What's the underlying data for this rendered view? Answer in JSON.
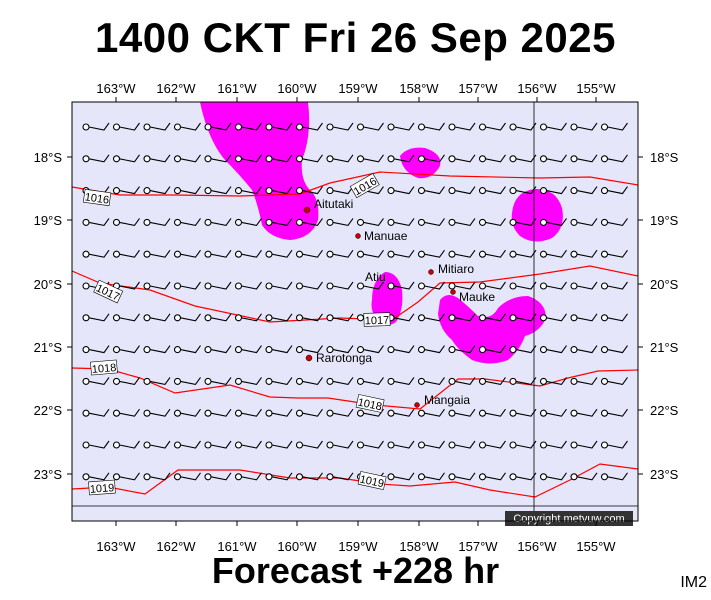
{
  "title": "1400 CKT Fri 26 Sep 2025",
  "footer": "Forecast +228 hr",
  "image_tag": "IM2",
  "copyright": "Copyright metvuw.com",
  "colors": {
    "background": "#e6e6fa",
    "rain": "#ff00ff",
    "isobar": "#ff0000",
    "island": "#cc0000",
    "wind": "#000000"
  },
  "longitude_labels": [
    "163°W",
    "162°W",
    "161°W",
    "160°W",
    "159°W",
    "158°W",
    "157°W",
    "156°W",
    "155°W"
  ],
  "latitude_labels": [
    "18°S",
    "19°S",
    "20°S",
    "21°S",
    "22°S",
    "23°S"
  ],
  "islands": [
    {
      "name": "Aitutaki"
    },
    {
      "name": "Manuae"
    },
    {
      "name": "Atiu"
    },
    {
      "name": "Mitiaro"
    },
    {
      "name": "Mauke"
    },
    {
      "name": "Rarotonga"
    },
    {
      "name": "Mangaia"
    }
  ],
  "isobars": [
    {
      "value": "1016"
    },
    {
      "value": "1016"
    },
    {
      "value": "1017"
    },
    {
      "value": "1017"
    },
    {
      "value": "1018"
    },
    {
      "value": "1018"
    },
    {
      "value": "1019"
    },
    {
      "value": "1019"
    }
  ]
}
